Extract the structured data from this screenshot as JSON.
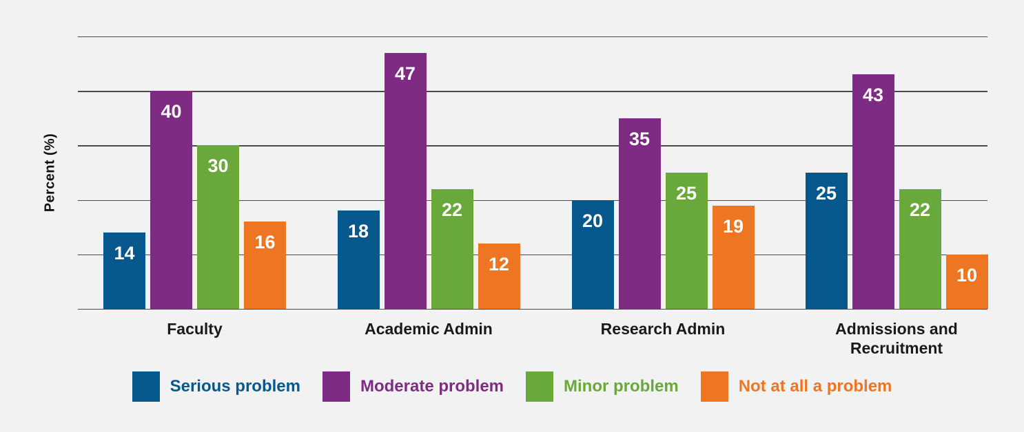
{
  "background_color": "#f2f2f2",
  "gridline_color": "#4a4a4a",
  "category_label_color": "#1a1a1a",
  "value_label_color": "#ffffff",
  "chart_data": {
    "type": "bar",
    "title": "",
    "xlabel": "",
    "ylabel": "Percent (%)",
    "ylim": [
      0,
      50
    ],
    "gridline_step": 10,
    "grid": true,
    "y_tick_labels_visible": false,
    "legend_position": "bottom",
    "value_labels": true,
    "categories": [
      "Faculty",
      "Academic Admin",
      "Research Admin",
      "Admissions and Recruitment"
    ],
    "series": [
      {
        "name": "Serious problem",
        "color": "#05578c",
        "values": [
          14,
          18,
          20,
          25
        ]
      },
      {
        "name": "Moderate problem",
        "color": "#7d2b83",
        "values": [
          40,
          47,
          35,
          43
        ]
      },
      {
        "name": "Minor problem",
        "color": "#69a83b",
        "values": [
          30,
          22,
          25,
          22
        ]
      },
      {
        "name": "Not at all a problem",
        "color": "#ee7623",
        "values": [
          16,
          12,
          19,
          10
        ]
      }
    ]
  }
}
